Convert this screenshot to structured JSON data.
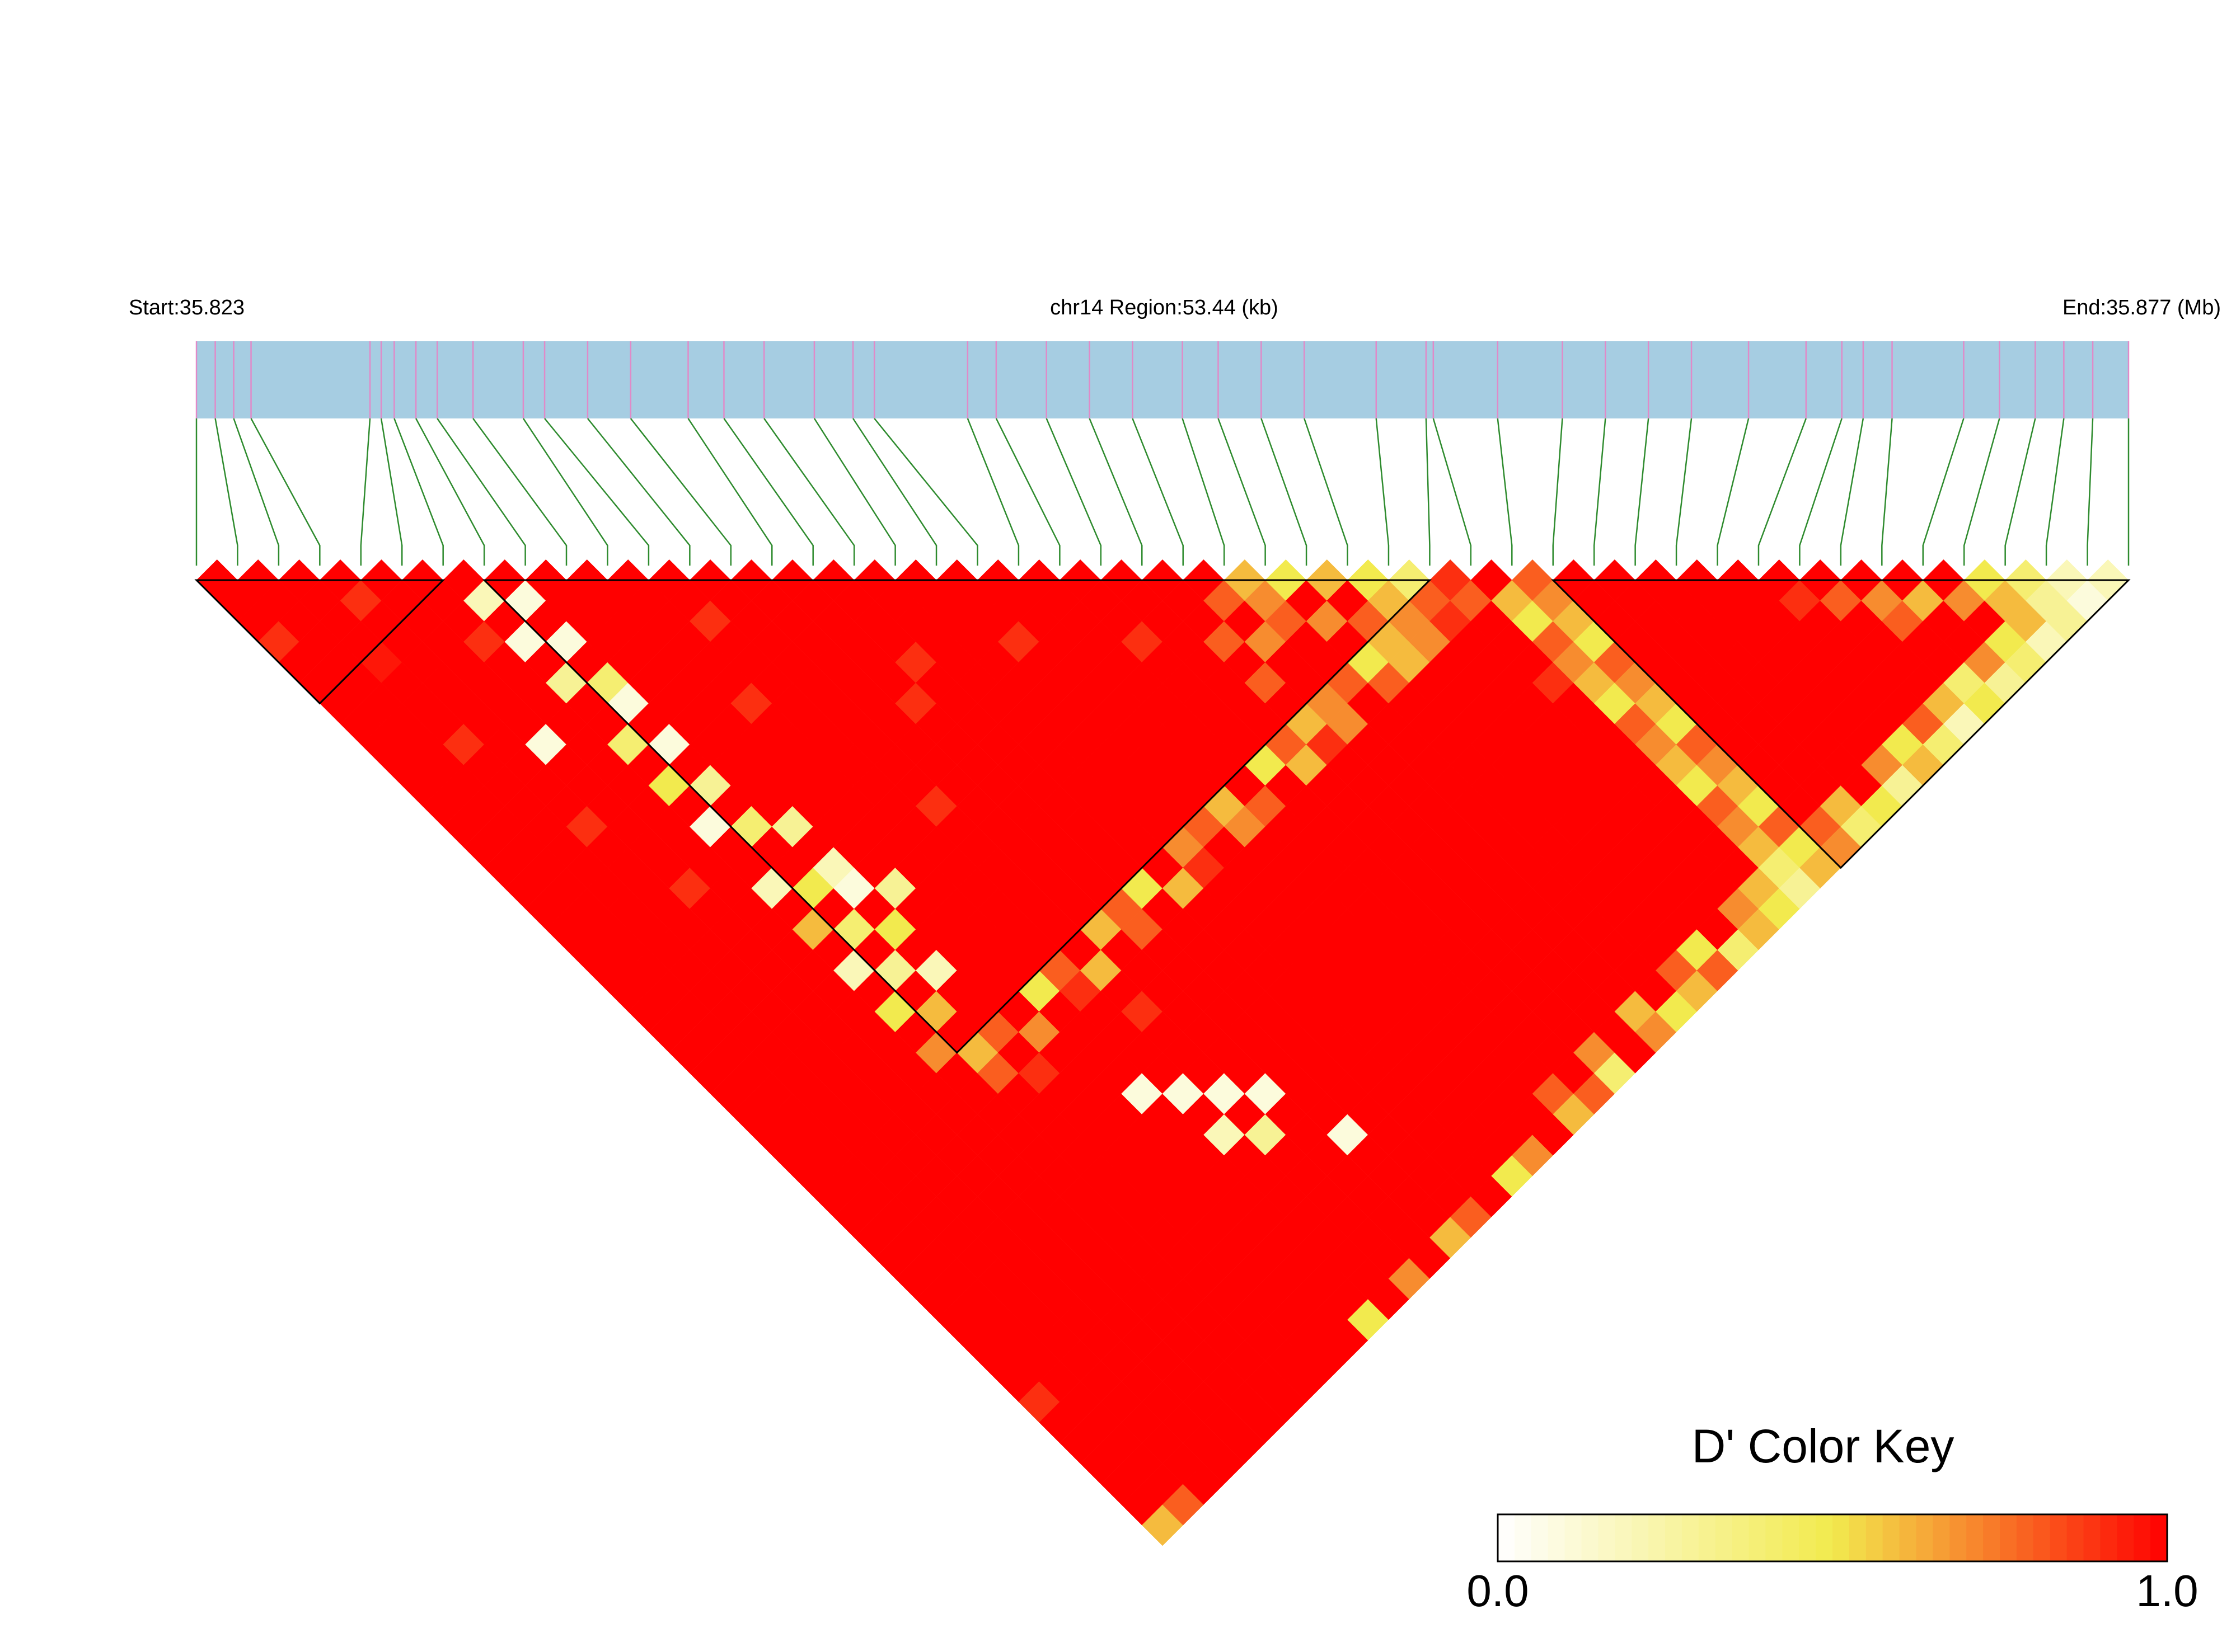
{
  "chart_data": {
    "type": "ld_heatmap",
    "start_label": "Start:35.823",
    "region_label": "chr14 Region:53.44 (kb)",
    "end_label": "End:35.877 (Mb)",
    "xlim": [
      0,
      53.44
    ],
    "positions": [
      0,
      0.52,
      1.03,
      1.51,
      4.8,
      5.11,
      5.47,
      6.07,
      6.66,
      7.65,
      9.04,
      9.63,
      10.82,
      12.01,
      13.6,
      14.59,
      15.7,
      17.09,
      18.16,
      18.75,
      21.33,
      22.12,
      23.51,
      24.7,
      25.89,
      27.27,
      28.26,
      29.45,
      30.64,
      32.63,
      34.01,
      34.21,
      35.99,
      37.78,
      38.97,
      40.16,
      41.35,
      42.93,
      44.52,
      45.51,
      46.1,
      46.9,
      48.88,
      49.87,
      50.86,
      51.65,
      52.45,
      53.44
    ],
    "bar_color": "#a6cde2",
    "marker_color": "#e08ac8",
    "connector_color": "#2e8b2e",
    "colors": [
      "#ffffff",
      "#f2ea4e",
      "#ff0000"
    ],
    "blocks": [
      [
        0,
        6
      ],
      [
        7,
        30
      ],
      [
        33,
        47
      ]
    ],
    "ld_matrix": [
      [
        1
      ],
      [
        1,
        1
      ],
      [
        1,
        1,
        1
      ],
      [
        0.9,
        1,
        1,
        1
      ],
      [
        1,
        1,
        1,
        0.9,
        1
      ],
      [
        1,
        1,
        1,
        1,
        1,
        1
      ],
      [
        1,
        1,
        0.95,
        1,
        1,
        1,
        1
      ],
      [
        1,
        1,
        1,
        1,
        1,
        1,
        0.2,
        1
      ],
      [
        1,
        1,
        1,
        1,
        1,
        0.9,
        1,
        0.1,
        1
      ],
      [
        1,
        1,
        1,
        1,
        1,
        1,
        0.1,
        1,
        1,
        1
      ],
      [
        1,
        1,
        0.9,
        1,
        1,
        1,
        1,
        0.1,
        1,
        1,
        1
      ],
      [
        1,
        1,
        1,
        1,
        1,
        1,
        0.3,
        1,
        1,
        1,
        1,
        1
      ],
      [
        1,
        1,
        1,
        1,
        0.1,
        1,
        1,
        0.4,
        1,
        1,
        1,
        1,
        1
      ],
      [
        1,
        1,
        1,
        1,
        1,
        1,
        1,
        0.1,
        1,
        1,
        1,
        0.9,
        1,
        1
      ],
      [
        1,
        1,
        1,
        1,
        1,
        1,
        0.4,
        1,
        1,
        1,
        1,
        1,
        1,
        1,
        1
      ],
      [
        1,
        1,
        1,
        0.9,
        1,
        1,
        1,
        0.1,
        1,
        1,
        1,
        1,
        1,
        1,
        1,
        1
      ],
      [
        1,
        1,
        1,
        1,
        1,
        1,
        0.5,
        1,
        1,
        1,
        0.9,
        1,
        1,
        1,
        1,
        1,
        1
      ],
      [
        1,
        1,
        1,
        1,
        1,
        1,
        1,
        0.3,
        1,
        1,
        1,
        1,
        1,
        1,
        1,
        1,
        1,
        1
      ],
      [
        1,
        1,
        1,
        1,
        1,
        1,
        0.1,
        1,
        1,
        1,
        1,
        1,
        1,
        1,
        1,
        1,
        1,
        1,
        1
      ],
      [
        1,
        1,
        1,
        1,
        0.9,
        1,
        1,
        0.4,
        1,
        1,
        1,
        1,
        1,
        1,
        1,
        0.9,
        1,
        1,
        1,
        1
      ],
      [
        1,
        1,
        1,
        1,
        1,
        1,
        1,
        1,
        0.3,
        1,
        1,
        1,
        1,
        1,
        0.9,
        1,
        1,
        1,
        1,
        1,
        1
      ],
      [
        1,
        1,
        1,
        1,
        1,
        1,
        0.2,
        1,
        1,
        1,
        1,
        1,
        1,
        1,
        1,
        1,
        1,
        1,
        0.9,
        1,
        1,
        1
      ],
      [
        1,
        1,
        1,
        1,
        1,
        1,
        1,
        0.5,
        0.2,
        1,
        1,
        1,
        1,
        1,
        1,
        1,
        1,
        1,
        1,
        1,
        1,
        1,
        1
      ],
      [
        1,
        1,
        1,
        1,
        1,
        1,
        0.6,
        1,
        0.1,
        1,
        1,
        1,
        0.9,
        1,
        1,
        1,
        1,
        1,
        1,
        1,
        1,
        1,
        1,
        1
      ],
      [
        1,
        1,
        1,
        1,
        1,
        1,
        1,
        0.4,
        1,
        0.3,
        1,
        1,
        1,
        1,
        1,
        1,
        1,
        1,
        1,
        1,
        1,
        0.9,
        1,
        1,
        1
      ],
      [
        1,
        1,
        1,
        1,
        1,
        1,
        0.2,
        1,
        0.5,
        1,
        1,
        1,
        1,
        1,
        1,
        1,
        1,
        1,
        1,
        1,
        1,
        1,
        1,
        1,
        0.8,
        0.6
      ],
      [
        1,
        1,
        1,
        1,
        1,
        1,
        1,
        0.3,
        1,
        1,
        1,
        1,
        1,
        1,
        1,
        1,
        1,
        1,
        1,
        1,
        1,
        1,
        1,
        0.8,
        1,
        0.7,
        0.5
      ],
      [
        1,
        1,
        1,
        1,
        1,
        1,
        0.5,
        1,
        0.2,
        1,
        1,
        1,
        1,
        1,
        1,
        1,
        1,
        1,
        1,
        1,
        1,
        1,
        1,
        1,
        0.7,
        0.8,
        1,
        0.6
      ],
      [
        1,
        1,
        1,
        1,
        1,
        1,
        1,
        0.6,
        1,
        1,
        1,
        1,
        1,
        1,
        1,
        1,
        1,
        1,
        1,
        1,
        1,
        1,
        1,
        0.8,
        1,
        1,
        0.7,
        1,
        0.5
      ],
      [
        1,
        1,
        1,
        1,
        1,
        1,
        0.7,
        1,
        1,
        1,
        1,
        1,
        1,
        1,
        1,
        1,
        1,
        1,
        1,
        1,
        1,
        1,
        1,
        1,
        1,
        1,
        1,
        0.8,
        0.6,
        0.4
      ],
      [
        1,
        1,
        1,
        1,
        1,
        1,
        1,
        0.6,
        0.8,
        1,
        0.5,
        0.8,
        1,
        0.6,
        0.8,
        0.5,
        1,
        0.7,
        0.8,
        0.6,
        1,
        0.5,
        0.8,
        0.6,
        0.7,
        0.8,
        0.5,
        0.6,
        0.7,
        0.8,
        0.9
      ],
      [
        1,
        1,
        1,
        1,
        1,
        1,
        1,
        0.8,
        1,
        0.7,
        1,
        0.9,
        0.6,
        1,
        0.8,
        1,
        0.6,
        0.9,
        1,
        0.7,
        0.8,
        1,
        0.6,
        0.9,
        0.7,
        1,
        0.8,
        0.6,
        0.7,
        0.9,
        0.8,
        1
      ],
      [
        1,
        1,
        1,
        1,
        1,
        1,
        1,
        1,
        0.9,
        1,
        1,
        1,
        1,
        1,
        1,
        1,
        1,
        1,
        1,
        1,
        1,
        1,
        1,
        1,
        1,
        1,
        1,
        1,
        1,
        1,
        1,
        0.6,
        0.8
      ],
      [
        1,
        1,
        1,
        1,
        1,
        1,
        1,
        1,
        1,
        1,
        1,
        1,
        0.9,
        1,
        1,
        1,
        1,
        1,
        1,
        1,
        1,
        1,
        1,
        1,
        1,
        1,
        1,
        1,
        1,
        1,
        1,
        0.5,
        0.7,
        1
      ],
      [
        1,
        1,
        1,
        1,
        1,
        1,
        1,
        1,
        1,
        1,
        1,
        1,
        1,
        1,
        1,
        1,
        1,
        1,
        1,
        1,
        1,
        1,
        1,
        1,
        1,
        1,
        1,
        1,
        1,
        1,
        1,
        0.8,
        0.6,
        1,
        1
      ],
      [
        1,
        1,
        1,
        1,
        1,
        1,
        1,
        1,
        1,
        1,
        0.1,
        1,
        1,
        1,
        1,
        1,
        1,
        1,
        1,
        1,
        1,
        1,
        1,
        1,
        1,
        1,
        1,
        1,
        1,
        1,
        0.9,
        0.7,
        0.5,
        1,
        1,
        1
      ],
      [
        1,
        1,
        1,
        1,
        1,
        1,
        1,
        1,
        1,
        1,
        1,
        0.1,
        1,
        1,
        1,
        1,
        1,
        1,
        1,
        1,
        1,
        1,
        1,
        1,
        1,
        1,
        1,
        1,
        1,
        1,
        1,
        0.6,
        0.8,
        1,
        1,
        1,
        1
      ],
      [
        1,
        1,
        1,
        1,
        1,
        1,
        1,
        1,
        1,
        1,
        1,
        1,
        0.1,
        1,
        1,
        1,
        1,
        1,
        1,
        1,
        1,
        1,
        1,
        1,
        1,
        1,
        1,
        1,
        1,
        1,
        1,
        0.5,
        0.7,
        1,
        1,
        1,
        1,
        1
      ],
      [
        1,
        1,
        1,
        1,
        1,
        1,
        1,
        1,
        1,
        1,
        1,
        0.2,
        1,
        0.1,
        1,
        1,
        1,
        1,
        1,
        1,
        1,
        1,
        1,
        1,
        1,
        1,
        1,
        1,
        1,
        1,
        1,
        0.8,
        0.6,
        1,
        1,
        1,
        1,
        1,
        1
      ],
      [
        1,
        1,
        1,
        1,
        1,
        1,
        1,
        1,
        1,
        1,
        1,
        1,
        0.3,
        1,
        1,
        1,
        1,
        1,
        1,
        1,
        1,
        1,
        1,
        1,
        1,
        1,
        1,
        1,
        1,
        1,
        1,
        0.7,
        0.5,
        1,
        1,
        1,
        1,
        1,
        0.9,
        1
      ],
      [
        0.9,
        1,
        1,
        1,
        1,
        1,
        1,
        1,
        1,
        1,
        1,
        1,
        1,
        1,
        1,
        1,
        1,
        1,
        1,
        1,
        1,
        1,
        1,
        1,
        1,
        1,
        1,
        1,
        1,
        1,
        1,
        0.6,
        0.8,
        1,
        1,
        1,
        1,
        1,
        1,
        0.8,
        1
      ],
      [
        1,
        1,
        1,
        1,
        1,
        1,
        1,
        1,
        1,
        1,
        1,
        1,
        1,
        1,
        0.1,
        1,
        1,
        1,
        1,
        1,
        1,
        1,
        1,
        1,
        1,
        1,
        1,
        1,
        1,
        1,
        1,
        0.5,
        0.7,
        1,
        1,
        1,
        1,
        1,
        1,
        1,
        0.7,
        1
      ],
      [
        1,
        1,
        1,
        1,
        1,
        1,
        1,
        1,
        1,
        1,
        1,
        1,
        1,
        1,
        1,
        1,
        1,
        1,
        1,
        1,
        1,
        1,
        1,
        1,
        1,
        1,
        1,
        1,
        1,
        1,
        1,
        0.8,
        0.6,
        1,
        1,
        1,
        1,
        1,
        1,
        1,
        0.8,
        0.6,
        1
      ],
      [
        1,
        1,
        1,
        1,
        1,
        1,
        1,
        1,
        1,
        1,
        1,
        1,
        1,
        1,
        1,
        1,
        1,
        1,
        1,
        1,
        1,
        1,
        1,
        1,
        1,
        1,
        1,
        1,
        1,
        1,
        1,
        0.7,
        0.5,
        1,
        1,
        1,
        1,
        1,
        1,
        1,
        1,
        1,
        0.7,
        0.5
      ],
      [
        1,
        1,
        1,
        1,
        1,
        1,
        1,
        1,
        1,
        1,
        1,
        1,
        1,
        1,
        1,
        1,
        1,
        1,
        1,
        1,
        1,
        1,
        1,
        1,
        1,
        1,
        1,
        1,
        1,
        1,
        1,
        0.6,
        0.8,
        1,
        1,
        1,
        1,
        1,
        1,
        1,
        1,
        1,
        1,
        0.6,
        0.4
      ],
      [
        1,
        1,
        1,
        1,
        1,
        1,
        1,
        1,
        1,
        1,
        1,
        1,
        1,
        1,
        1,
        1,
        1,
        1,
        1,
        1,
        0.8,
        1,
        0.7,
        1,
        0.6,
        1,
        0.8,
        0.5,
        1,
        0.7,
        0.6,
        0.4,
        0.5,
        0.8,
        0.6,
        1,
        0.7,
        0.5,
        0.8,
        0.6,
        0.4,
        0.7,
        0.5,
        0.6,
        0.3,
        0.2
      ],
      [
        0.6,
        0.8,
        1,
        1,
        1,
        1,
        1,
        1,
        1,
        1,
        0.5,
        1,
        0.7,
        1,
        0.6,
        0.8,
        1,
        0.5,
        0.7,
        1,
        0.6,
        0.8,
        0.4,
        1,
        0.7,
        0.5,
        0.6,
        0.8,
        0.4,
        0.6,
        0.5,
        0.3,
        0.6,
        0.7,
        0.4,
        0.5,
        0.3,
        0.6,
        0.4,
        0.2,
        0.5,
        0.3,
        0.4,
        0.2,
        0.3,
        0.1,
        0.2
      ]
    ],
    "key_title": "D' Color Key",
    "key_lim": [
      0,
      1
    ],
    "key_ticks": [
      {
        "value": 0,
        "label": "0.0"
      },
      {
        "value": 1,
        "label": "1.0"
      }
    ]
  }
}
